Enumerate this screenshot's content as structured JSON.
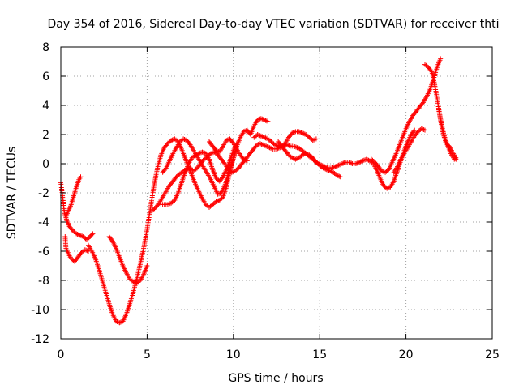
{
  "chart_data": {
    "type": "scatter",
    "title": "Day 354 of 2016, Sidereal Day-to-day VTEC variation (SDTVAR) for receiver thti",
    "xlabel": "GPS time / hours",
    "ylabel": "SDTVAR / TECUs",
    "xlim": [
      0,
      25
    ],
    "ylim": [
      -12,
      8
    ],
    "xticks": [
      0,
      5,
      10,
      15,
      20,
      25
    ],
    "yticks": [
      -12,
      -10,
      -8,
      -6,
      -4,
      -2,
      0,
      2,
      4,
      6,
      8
    ],
    "grid": true,
    "legend": "none",
    "marker": "+",
    "color": "#ff0000",
    "series": [
      {
        "x": [
          0.0,
          0.1,
          0.2,
          0.35,
          0.5,
          0.7,
          0.9,
          1.1,
          1.3,
          1.5,
          1.7,
          1.85
        ],
        "y": [
          -1.3,
          -2.2,
          -3.3,
          -3.9,
          -4.3,
          -4.6,
          -4.8,
          -4.9,
          -5.0,
          -5.2,
          -5.0,
          -4.8
        ]
      },
      {
        "x": [
          0.25,
          0.3,
          0.45,
          0.6,
          0.8,
          1.0,
          1.2,
          1.4,
          1.6
        ],
        "y": [
          -5.0,
          -5.8,
          -6.2,
          -6.5,
          -6.7,
          -6.4,
          -6.1,
          -5.9,
          -6.0
        ]
      },
      {
        "x": [
          0.3,
          0.45,
          0.6,
          0.75,
          0.9,
          1.05,
          1.15
        ],
        "y": [
          -3.6,
          -3.2,
          -2.8,
          -2.2,
          -1.6,
          -1.1,
          -0.9
        ]
      },
      {
        "x": [
          1.6,
          1.8,
          2.0,
          2.2,
          2.4,
          2.6,
          2.8,
          3.0,
          3.2,
          3.4,
          3.6,
          3.8,
          4.0,
          4.2,
          4.4,
          4.6,
          4.8,
          5.0,
          5.2,
          5.4,
          5.6,
          5.8,
          6.0,
          6.2,
          6.4,
          6.6,
          6.8,
          7.0,
          7.2,
          7.4,
          7.6,
          7.8,
          8.0,
          8.2,
          8.4,
          8.6,
          8.8,
          9.0,
          9.2,
          9.4,
          9.6,
          9.8,
          10.0,
          10.2,
          10.4,
          10.6,
          10.8,
          11.0,
          11.2,
          11.4,
          11.6,
          11.8,
          12.0
        ],
        "y": [
          -5.6,
          -6.0,
          -6.5,
          -7.2,
          -8.0,
          -8.8,
          -9.6,
          -10.3,
          -10.8,
          -10.9,
          -10.8,
          -10.3,
          -9.6,
          -8.8,
          -7.9,
          -6.9,
          -5.8,
          -4.5,
          -3.0,
          -1.5,
          -0.3,
          0.6,
          1.1,
          1.4,
          1.6,
          1.7,
          1.5,
          1.0,
          0.4,
          -0.2,
          -0.8,
          -1.4,
          -1.9,
          -2.4,
          -2.8,
          -3.0,
          -2.8,
          -2.6,
          -2.5,
          -2.3,
          -1.6,
          -0.5,
          0.4,
          1.2,
          1.8,
          2.2,
          2.3,
          2.0,
          2.6,
          3.0,
          3.1,
          3.0,
          2.9
        ]
      },
      {
        "x": [
          2.8,
          3.0,
          3.2,
          3.4,
          3.6,
          3.8,
          4.0,
          4.2,
          4.4,
          4.6,
          4.8,
          5.0
        ],
        "y": [
          -5.0,
          -5.3,
          -5.8,
          -6.4,
          -7.0,
          -7.5,
          -7.9,
          -8.1,
          -8.2,
          -8.0,
          -7.6,
          -7.0
        ]
      },
      {
        "x": [
          5.3,
          5.5,
          5.7,
          5.9,
          6.1,
          6.3,
          6.5,
          6.7,
          6.9,
          7.1,
          7.3,
          7.5,
          7.7,
          7.9,
          8.1,
          8.3,
          8.5,
          8.7,
          8.9,
          9.1,
          9.3,
          9.5,
          9.7,
          9.9,
          10.1,
          10.3,
          10.5,
          10.7,
          10.9,
          11.1,
          11.3,
          11.5,
          11.7,
          11.9,
          12.1,
          12.3,
          12.5,
          12.7,
          12.9,
          13.1,
          13.3,
          13.5,
          13.7,
          13.9,
          14.1,
          14.3,
          14.5,
          14.7,
          14.9,
          15.1,
          15.3,
          15.5,
          15.7,
          15.9,
          16.1,
          16.3,
          16.5,
          16.7,
          16.9,
          17.1,
          17.3,
          17.5,
          17.7,
          17.9,
          18.1,
          18.3,
          18.5,
          18.7,
          18.9,
          19.1,
          19.3,
          19.5,
          19.7,
          19.9,
          20.1,
          20.3,
          20.5
        ],
        "y": [
          -3.2,
          -3.0,
          -2.7,
          -2.3,
          -1.9,
          -1.5,
          -1.2,
          -0.9,
          -0.7,
          -0.5,
          -0.4,
          -0.3,
          -0.5,
          -0.3,
          0.0,
          0.3,
          0.5,
          0.7,
          0.8,
          0.6,
          0.3,
          0.0,
          -0.4,
          -0.6,
          -0.5,
          -0.3,
          0.0,
          0.3,
          0.6,
          0.9,
          1.2,
          1.4,
          1.3,
          1.2,
          1.1,
          1.0,
          1.0,
          1.1,
          1.2,
          1.3,
          1.2,
          1.2,
          1.1,
          1.0,
          0.8,
          0.6,
          0.4,
          0.2,
          0.0,
          -0.1,
          -0.2,
          -0.3,
          -0.3,
          -0.2,
          -0.1,
          0.0,
          0.1,
          0.1,
          0.0,
          0.0,
          0.1,
          0.2,
          0.3,
          0.2,
          0.0,
          -0.4,
          -1.0,
          -1.5,
          -1.7,
          -1.6,
          -1.2,
          -0.5,
          0.2,
          0.9,
          1.5,
          2.0,
          2.3
        ]
      },
      {
        "x": [
          5.8,
          6.0,
          6.2,
          6.4,
          6.6,
          6.8,
          7.0,
          7.2,
          7.4,
          7.6,
          7.8,
          8.0,
          8.2,
          8.4,
          8.6,
          8.8,
          9.0,
          9.2,
          9.4,
          9.6,
          9.8,
          10.0,
          10.2
        ],
        "y": [
          -2.8,
          -2.8,
          -2.8,
          -2.7,
          -2.5,
          -2.0,
          -1.3,
          -0.6,
          0.0,
          0.4,
          0.6,
          0.7,
          0.8,
          0.7,
          0.3,
          -0.4,
          -1.0,
          -1.2,
          -0.9,
          -0.4,
          0.2,
          0.9,
          1.4
        ]
      },
      {
        "x": [
          5.9,
          6.1,
          6.3,
          6.5,
          6.7,
          6.9,
          7.1,
          7.3,
          7.5,
          7.7,
          7.9,
          8.1,
          8.3,
          8.5,
          8.7,
          8.9,
          9.1,
          9.3,
          9.5,
          9.7,
          9.9,
          10.1
        ],
        "y": [
          -0.6,
          -0.3,
          0.2,
          0.7,
          1.1,
          1.5,
          1.7,
          1.6,
          1.3,
          0.9,
          0.5,
          0.1,
          -0.3,
          -0.7,
          -1.1,
          -1.6,
          -2.1,
          -2.0,
          -1.5,
          -0.8,
          0.0,
          0.7
        ]
      },
      {
        "x": [
          8.6,
          8.8,
          9.0,
          9.2,
          9.4,
          9.6,
          9.8,
          10.0,
          10.2,
          10.4,
          10.6,
          10.8
        ],
        "y": [
          1.5,
          1.2,
          0.9,
          0.8,
          1.2,
          1.6,
          1.7,
          1.4,
          1.0,
          0.6,
          0.3,
          0.2
        ]
      },
      {
        "x": [
          11.2,
          11.4,
          11.6,
          11.8,
          12.0,
          12.2,
          12.4,
          12.6,
          12.8,
          13.0,
          13.2,
          13.4,
          13.6,
          13.8,
          14.0,
          14.2,
          14.4,
          14.6,
          14.8
        ],
        "y": [
          1.8,
          2.0,
          1.9,
          1.8,
          1.7,
          1.5,
          1.3,
          1.2,
          1.2,
          1.4,
          1.8,
          2.1,
          2.2,
          2.2,
          2.1,
          2.0,
          1.8,
          1.6,
          1.7
        ]
      },
      {
        "x": [
          12.6,
          12.8,
          13.0,
          13.2,
          13.4,
          13.6,
          13.8,
          14.0,
          14.2,
          14.4,
          14.6,
          14.8,
          15.0,
          15.2,
          15.4,
          15.6,
          15.8,
          16.0,
          16.2
        ],
        "y": [
          1.5,
          1.2,
          0.9,
          0.6,
          0.4,
          0.3,
          0.4,
          0.6,
          0.7,
          0.6,
          0.4,
          0.1,
          -0.1,
          -0.3,
          -0.4,
          -0.5,
          -0.6,
          -0.8,
          -0.9
        ]
      },
      {
        "x": [
          18.0,
          18.2,
          18.4,
          18.6,
          18.8,
          19.0,
          19.2,
          19.4,
          19.6,
          19.8,
          20.0,
          20.2,
          20.4,
          20.6,
          20.8,
          21.0,
          21.2,
          21.4,
          21.6,
          21.8,
          22.0
        ],
        "y": [
          0.3,
          0.1,
          -0.2,
          -0.5,
          -0.6,
          -0.4,
          0.1,
          0.6,
          1.2,
          1.8,
          2.4,
          2.9,
          3.3,
          3.6,
          3.9,
          4.2,
          4.6,
          5.1,
          5.8,
          6.6,
          7.2
        ]
      },
      {
        "x": [
          19.3,
          19.5,
          19.7,
          19.9,
          20.1,
          20.3,
          20.5,
          20.7,
          20.9,
          21.1
        ],
        "y": [
          -0.6,
          -0.2,
          0.3,
          0.7,
          1.1,
          1.5,
          1.9,
          2.2,
          2.4,
          2.3
        ]
      },
      {
        "x": [
          21.1,
          21.3,
          21.5,
          21.6,
          21.7,
          21.8,
          21.9,
          22.0,
          22.1,
          22.2,
          22.3,
          22.4,
          22.5,
          22.6,
          22.7,
          22.8,
          22.9
        ],
        "y": [
          6.8,
          6.6,
          6.3,
          5.8,
          5.2,
          4.5,
          3.8,
          3.1,
          2.5,
          2.0,
          1.6,
          1.3,
          1.0,
          0.7,
          0.5,
          0.3,
          0.4
        ]
      },
      {
        "x": [
          21.9,
          22.0,
          22.1,
          22.2,
          22.3,
          22.4,
          22.5,
          22.6,
          22.7,
          22.8,
          22.9
        ],
        "y": [
          3.7,
          3.0,
          2.4,
          1.9,
          1.5,
          1.3,
          1.2,
          1.0,
          0.8,
          0.6,
          0.3
        ]
      }
    ]
  }
}
